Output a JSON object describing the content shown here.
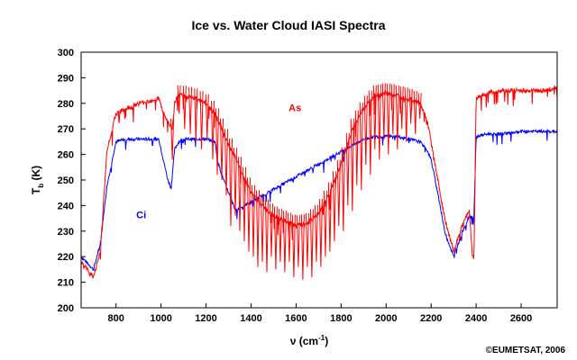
{
  "chart_data": {
    "type": "line",
    "title": "Ice vs. Water Cloud IASI Spectra",
    "xlabel": "ν (cm",
    "xlabel_exp": "-1",
    "xlabel_close": ")",
    "ylabel": "T",
    "ylabel_sub": "b",
    "ylabel_unit": " (K)",
    "xlim": [
      645,
      2760
    ],
    "ylim": [
      200,
      300
    ],
    "xticks": [
      800,
      1000,
      1200,
      1400,
      1600,
      1800,
      2000,
      2200,
      2400,
      2600
    ],
    "yticks": [
      200,
      210,
      220,
      230,
      240,
      250,
      260,
      270,
      280,
      290,
      300
    ],
    "grid": false,
    "credit": "©EUMETSAT, 2006",
    "series": [
      {
        "name": "Ci",
        "color": "#0000ff",
        "label_at": [
          912,
          235
        ],
        "x": [
          645,
          700,
          730,
          760,
          800,
          850,
          900,
          950,
          990,
          1000,
          1010,
          1030,
          1045,
          1060,
          1080,
          1100,
          1150,
          1200,
          1240,
          1250,
          1270,
          1300,
          1330,
          1900,
          1950,
          2000,
          2050,
          2100,
          2150,
          2180,
          2200,
          2230,
          2260,
          2300,
          2340,
          2370,
          2390,
          2400,
          2450,
          2500,
          2600,
          2700,
          2760
        ],
        "y": [
          220,
          215,
          225,
          248,
          265,
          266,
          266,
          266,
          266,
          262,
          258,
          250,
          247,
          262,
          265,
          266,
          266,
          266,
          265,
          258,
          252,
          245,
          238,
          266,
          267,
          267,
          267,
          266,
          265,
          262,
          258,
          245,
          230,
          220,
          230,
          236,
          235,
          267,
          268,
          268,
          269,
          269,
          269
        ]
      },
      {
        "name": "As",
        "color": "#ff0000",
        "label_at": [
          1595,
          277
        ],
        "x": [
          645,
          700,
          730,
          760,
          800,
          850,
          900,
          950,
          990,
          1000,
          1020,
          1050,
          1060,
          1070,
          1080,
          1100,
          1150,
          1200,
          1240,
          1260,
          1300,
          1350,
          1400,
          1450,
          1500,
          1550,
          1600,
          1650,
          1700,
          1750,
          1800,
          1850,
          1900,
          1950,
          2000,
          2050,
          2100,
          2150,
          2180,
          2200,
          2230,
          2260,
          2300,
          2340,
          2370,
          2380,
          2390,
          2400,
          2450,
          2500,
          2600,
          2700,
          2760
        ],
        "y": [
          218,
          212,
          222,
          262,
          276,
          278,
          280,
          281,
          282,
          279,
          274,
          270,
          280,
          282,
          283,
          283,
          282,
          280,
          276,
          272,
          264,
          255,
          245,
          240,
          236,
          234,
          232,
          233,
          237,
          245,
          256,
          270,
          278,
          283,
          284,
          283,
          282,
          280,
          274,
          265,
          250,
          235,
          222,
          233,
          238,
          224,
          218,
          282,
          284,
          285,
          285,
          285,
          286
        ],
        "notches": [
          [
            1050,
            258
          ],
          [
            1080,
            276
          ],
          [
            1105,
            270
          ],
          [
            1130,
            268
          ],
          [
            1155,
            265
          ],
          [
            1180,
            262
          ],
          [
            1205,
            266
          ],
          [
            1230,
            258
          ],
          [
            1250,
            252
          ],
          [
            1270,
            250
          ],
          [
            1290,
            244
          ],
          [
            1310,
            232
          ],
          [
            1330,
            236
          ],
          [
            1350,
            230
          ],
          [
            1370,
            226
          ],
          [
            1390,
            222
          ],
          [
            1410,
            220
          ],
          [
            1430,
            216
          ],
          [
            1450,
            218
          ],
          [
            1470,
            214
          ],
          [
            1490,
            220
          ],
          [
            1510,
            215
          ],
          [
            1530,
            218
          ],
          [
            1550,
            214
          ],
          [
            1570,
            218
          ],
          [
            1590,
            212
          ],
          [
            1610,
            216
          ],
          [
            1630,
            211
          ],
          [
            1650,
            216
          ],
          [
            1670,
            212
          ],
          [
            1690,
            218
          ],
          [
            1710,
            216
          ],
          [
            1730,
            220
          ],
          [
            1750,
            222
          ],
          [
            1770,
            226
          ],
          [
            1790,
            232
          ],
          [
            1810,
            230
          ],
          [
            1830,
            240
          ],
          [
            1850,
            238
          ],
          [
            1870,
            248
          ],
          [
            1890,
            246
          ],
          [
            1910,
            256
          ],
          [
            1930,
            252
          ],
          [
            1950,
            262
          ],
          [
            1970,
            258
          ],
          [
            1990,
            266
          ],
          [
            2010,
            260
          ],
          [
            2030,
            268
          ],
          [
            2050,
            262
          ],
          [
            2070,
            270
          ],
          [
            2090,
            265
          ],
          [
            2110,
            272
          ],
          [
            2130,
            268
          ],
          [
            2150,
            274
          ]
        ]
      }
    ]
  }
}
